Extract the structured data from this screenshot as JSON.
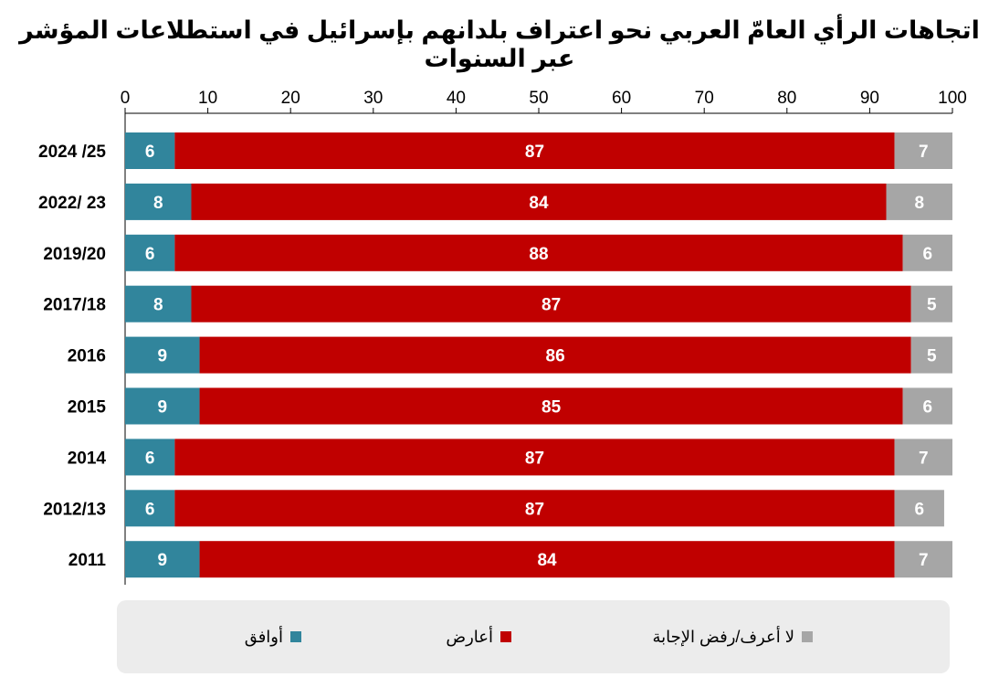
{
  "colors": {
    "agree": "#31859c",
    "oppose": "#c00000",
    "dontknow": "#a6a6a6"
  },
  "chart_data": {
    "type": "bar",
    "orientation": "horizontal",
    "stacked": true,
    "title": "اتجاهات الرأي العامّ العربي نحو اعتراف بلدانهم بإسرائيل في استطلاعات المؤشر عبر السنوات",
    "xlim": [
      0,
      100
    ],
    "xticks": [
      0,
      10,
      20,
      30,
      40,
      50,
      60,
      70,
      80,
      90,
      100
    ],
    "categories": [
      "2024 /25",
      "2022/ 23",
      "2019/20",
      "2017/18",
      "2016",
      "2015",
      "2014",
      "2012/13",
      "2011"
    ],
    "series": [
      {
        "name": "أوافق",
        "color": "#31859c",
        "values": [
          6,
          8,
          6,
          8,
          9,
          9,
          6,
          6,
          9
        ]
      },
      {
        "name": "أعارض",
        "color": "#c00000",
        "values": [
          87,
          84,
          88,
          87,
          86,
          85,
          87,
          87,
          84
        ]
      },
      {
        "name": "لا أعرف/رفض الإجابة",
        "color": "#a6a6a6",
        "values": [
          7,
          8,
          6,
          5,
          5,
          6,
          7,
          6,
          7
        ]
      }
    ],
    "legend_position": "bottom",
    "grid": false
  }
}
